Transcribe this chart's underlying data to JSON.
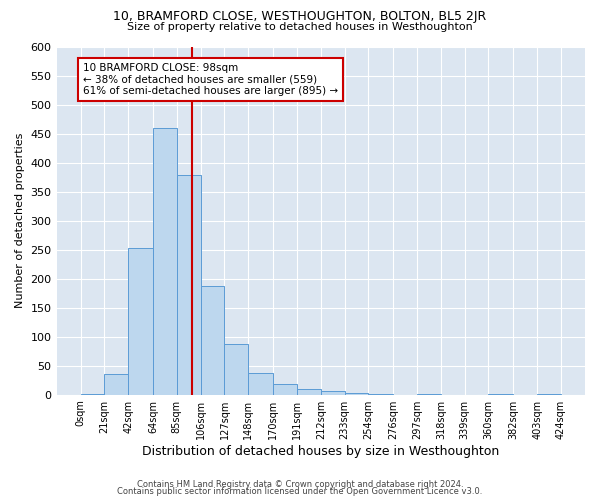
{
  "title": "10, BRAMFORD CLOSE, WESTHOUGHTON, BOLTON, BL5 2JR",
  "subtitle": "Size of property relative to detached houses in Westhoughton",
  "xlabel": "Distribution of detached houses by size in Westhoughton",
  "ylabel": "Number of detached properties",
  "footer_line1": "Contains HM Land Registry data © Crown copyright and database right 2024.",
  "footer_line2": "Contains public sector information licensed under the Open Government Licence v3.0.",
  "annotation_line1": "10 BRAMFORD CLOSE: 98sqm",
  "annotation_line2": "← 38% of detached houses are smaller (559)",
  "annotation_line3": "61% of semi-detached houses are larger (895) →",
  "property_size": 98,
  "bin_edges": [
    0,
    21,
    42,
    64,
    85,
    106,
    127,
    148,
    170,
    191,
    212,
    233,
    254,
    276,
    297,
    318,
    339,
    360,
    382,
    403,
    424
  ],
  "bar_heights": [
    2,
    35,
    252,
    460,
    378,
    187,
    88,
    37,
    18,
    10,
    6,
    3,
    1,
    0,
    1,
    0,
    0,
    1,
    0,
    1
  ],
  "bar_color": "#bdd7ee",
  "bar_edge_color": "#5b9bd5",
  "vline_color": "#cc0000",
  "vline_x": 98,
  "annotation_box_edge": "#cc0000",
  "background_color": "#ffffff",
  "plot_bg_color": "#dce6f1",
  "grid_color": "#ffffff",
  "ylim": [
    0,
    600
  ],
  "yticks": [
    0,
    50,
    100,
    150,
    200,
    250,
    300,
    350,
    400,
    450,
    500,
    550,
    600
  ]
}
